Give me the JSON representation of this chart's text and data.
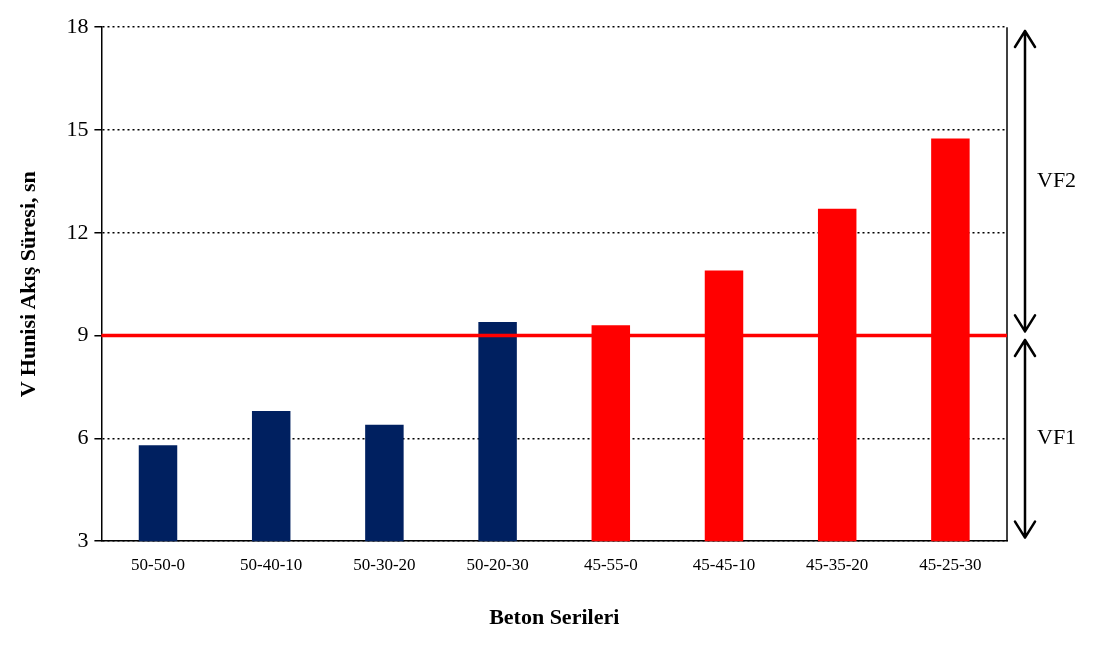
{
  "chart_data": {
    "type": "bar",
    "xlabel": "Beton Serileri",
    "ylabel": "V Hunisi Akış Süresi, sn",
    "categories": [
      "50-50-0",
      "50-40-10",
      "50-30-20",
      "50-20-30",
      "45-55-0",
      "45-45-10",
      "45-35-20",
      "45-25-30"
    ],
    "values": [
      5.8,
      6.8,
      6.4,
      9.4,
      9.3,
      10.9,
      12.7,
      14.75
    ],
    "colors": [
      "#002060",
      "#002060",
      "#002060",
      "#002060",
      "#ff0000",
      "#ff0000",
      "#ff0000",
      "#ff0000"
    ],
    "ylim": [
      3,
      18
    ],
    "yticks": [
      3,
      6,
      9,
      12,
      15,
      18
    ],
    "grid": "y",
    "ref_lines": [
      {
        "axis": "y",
        "value": 9,
        "color": "#ff0000"
      }
    ],
    "annotations": [
      "VF1",
      "VF2"
    ]
  }
}
